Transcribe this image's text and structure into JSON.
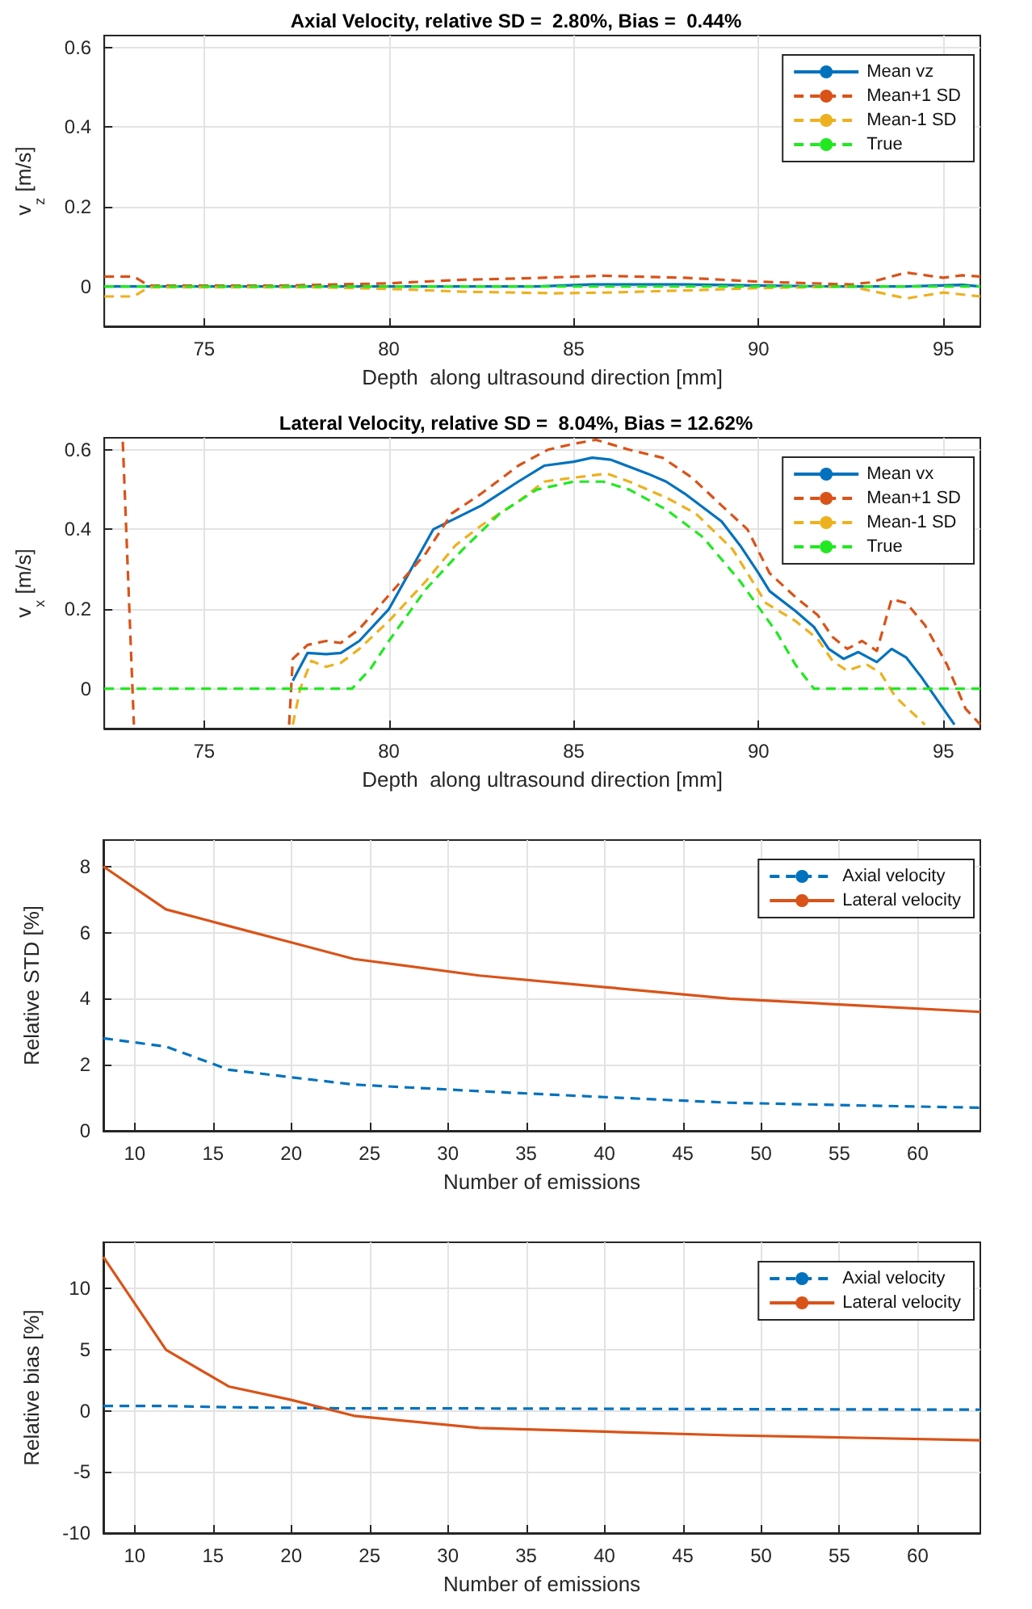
{
  "chart_data": [
    {
      "type": "line",
      "title": "Axial Velocity, relative SD =  2.80%, Bias =  0.44%",
      "xlabel": "Depth  along ultrasound direction [mm]",
      "ylabel": "v$_{z}$ [m/s]",
      "xlim": [
        72.3,
        96
      ],
      "xticks": [
        75,
        80,
        85,
        90,
        95
      ],
      "ylim": [
        -0.1,
        0.63
      ],
      "yticks": [
        0,
        0.2,
        0.4,
        0.6
      ],
      "grid": true,
      "legend": "top right",
      "series": [
        {
          "name": "Mean vz",
          "color": "#0072bd",
          "line_style": "solid",
          "x": [
            72.3,
            74,
            80,
            84,
            85.5,
            88,
            92,
            94,
            95.5,
            96
          ],
          "values": [
            0,
            0,
            0,
            0,
            0.005,
            0.005,
            0,
            0,
            0.004,
            0
          ]
        },
        {
          "name": "Mean+1 SD",
          "color": "#d95319",
          "line_style": "dashed",
          "x": [
            72.3,
            73.1,
            73.5,
            77,
            80,
            82,
            83.5,
            85.8,
            88,
            90,
            92.5,
            93,
            94,
            95,
            95.5,
            96
          ],
          "values": [
            0.025,
            0.025,
            0.002,
            0.002,
            0.008,
            0.017,
            0.02,
            0.027,
            0.022,
            0.012,
            0.005,
            0.01,
            0.035,
            0.022,
            0.028,
            0.025
          ]
        },
        {
          "name": "Mean-1 SD",
          "color": "#edb120",
          "line_style": "dashed",
          "x": [
            72.3,
            73.1,
            73.5,
            78,
            80,
            82,
            84.5,
            86,
            88,
            90,
            92.5,
            93,
            94,
            95,
            96
          ],
          "values": [
            -0.025,
            -0.025,
            -0.002,
            -0.002,
            -0.006,
            -0.013,
            -0.017,
            -0.015,
            -0.01,
            -0.004,
            0,
            -0.01,
            -0.03,
            -0.015,
            -0.025
          ]
        },
        {
          "name": "True",
          "color": "#22e822",
          "line_style": "dashed",
          "x": [
            72.3,
            96
          ],
          "values": [
            0,
            0
          ]
        }
      ]
    },
    {
      "type": "line",
      "title": "Lateral Velocity, relative SD =  8.04%, Bias = 12.62%",
      "xlabel": "Depth  along ultrasound direction [mm]",
      "ylabel": "v$_{x}$ [m/s]",
      "xlim": [
        72.3,
        96
      ],
      "xticks": [
        75,
        80,
        85,
        90,
        95
      ],
      "ylim": [
        -0.1,
        0.63
      ],
      "yticks": [
        0,
        0.2,
        0.4,
        0.6
      ],
      "grid": true,
      "legend": "top right",
      "series": [
        {
          "name": "Mean vx",
          "color": "#0072bd",
          "line_style": "solid",
          "x": [
            77.4,
            77.8,
            78.3,
            78.7,
            79.2,
            80,
            80.6,
            81.2,
            82.5,
            83.5,
            84.2,
            85,
            85.5,
            86,
            87,
            87.5,
            88,
            89,
            89.5,
            90,
            90.3,
            91,
            91.5,
            91.9,
            92.3,
            92.7,
            93.2,
            93.6,
            94,
            94.4,
            95.3
          ],
          "values": [
            0.02,
            0.09,
            0.087,
            0.09,
            0.12,
            0.2,
            0.3,
            0.4,
            0.46,
            0.52,
            0.56,
            0.57,
            0.58,
            0.575,
            0.54,
            0.52,
            0.49,
            0.42,
            0.36,
            0.29,
            0.245,
            0.195,
            0.155,
            0.1,
            0.075,
            0.092,
            0.067,
            0.1,
            0.078,
            0.03,
            -0.09
          ]
        },
        {
          "name": "Mean+1 SD",
          "color": "#d95319",
          "line_style": "dashed",
          "x": [
            72.8,
            73.1,
            null,
            77.3,
            77.4,
            77.8,
            78.3,
            78.7,
            79.2,
            80,
            81,
            81.7,
            82.5,
            83.5,
            84.3,
            85,
            85.6,
            86.5,
            87.4,
            88.2,
            89,
            89.7,
            90.3,
            91,
            91.6,
            92,
            92.4,
            92.8,
            93.2,
            93.6,
            94,
            94.5,
            95.1,
            95.6,
            96
          ],
          "values": [
            0.62,
            -0.09,
            null,
            -0.09,
            0.075,
            0.11,
            0.12,
            0.115,
            0.15,
            0.235,
            0.34,
            0.44,
            0.49,
            0.56,
            0.6,
            0.615,
            0.625,
            0.6,
            0.58,
            0.53,
            0.46,
            0.4,
            0.29,
            0.23,
            0.185,
            0.13,
            0.1,
            0.12,
            0.095,
            0.225,
            0.215,
            0.16,
            0.06,
            -0.05,
            -0.09
          ]
        },
        {
          "name": "Mean-1 SD",
          "color": "#edb120",
          "line_style": "dashed",
          "x": [
            77.4,
            77.6,
            77.9,
            78.3,
            78.7,
            79.2,
            80,
            81,
            81.8,
            82.5,
            83.5,
            84.2,
            85,
            85.9,
            86.5,
            87.5,
            88.3,
            89.3,
            90.2,
            91,
            91.6,
            92,
            92.4,
            92.9,
            93.3,
            93.7,
            94.5
          ],
          "values": [
            -0.09,
            0,
            0.07,
            0.055,
            0.065,
            0.1,
            0.17,
            0.27,
            0.36,
            0.41,
            0.47,
            0.52,
            0.53,
            0.54,
            0.52,
            0.48,
            0.44,
            0.35,
            0.215,
            0.17,
            0.125,
            0.07,
            0.045,
            0.062,
            0.04,
            -0.02,
            -0.09
          ]
        },
        {
          "name": "True",
          "color": "#22e822",
          "line_style": "dashed",
          "x": [
            72.3,
            79,
            79.5,
            80,
            81,
            82,
            83,
            84,
            85,
            85.8,
            86.5,
            87.5,
            88.5,
            89.5,
            90.5,
            91,
            91.5,
            96
          ],
          "values": [
            0,
            0,
            0.05,
            0.12,
            0.25,
            0.35,
            0.44,
            0.5,
            0.52,
            0.52,
            0.5,
            0.45,
            0.38,
            0.27,
            0.14,
            0.06,
            0,
            0
          ]
        }
      ]
    },
    {
      "type": "line",
      "xlabel": "Number of emissions",
      "ylabel": "Relative STD [%]",
      "xlim": [
        8,
        64
      ],
      "xticks": [
        10,
        15,
        20,
        25,
        30,
        35,
        40,
        45,
        50,
        55,
        60
      ],
      "ylim": [
        0,
        8.8
      ],
      "yticks": [
        0,
        2,
        4,
        6,
        8
      ],
      "grid": true,
      "legend": "top right",
      "series": [
        {
          "name": "Axial velocity",
          "color": "#0072bd",
          "line_style": "dashed",
          "x": [
            8,
            12,
            16,
            20,
            24,
            32,
            40,
            48,
            56,
            64
          ],
          "values": [
            2.8,
            2.55,
            1.85,
            1.62,
            1.4,
            1.2,
            1.02,
            0.85,
            0.77,
            0.7
          ]
        },
        {
          "name": "Lateral velocity",
          "color": "#d95319",
          "line_style": "solid",
          "x": [
            8,
            12,
            16,
            20,
            24,
            32,
            40,
            48,
            56,
            64
          ],
          "values": [
            8.0,
            6.7,
            6.2,
            5.7,
            5.2,
            4.7,
            4.35,
            4.0,
            3.8,
            3.6
          ]
        }
      ]
    },
    {
      "type": "line",
      "xlabel": "Number of emissions",
      "ylabel": "Relative bias [%]",
      "xlim": [
        8,
        64
      ],
      "xticks": [
        10,
        15,
        20,
        25,
        30,
        35,
        40,
        45,
        50,
        55,
        60
      ],
      "ylim": [
        -10,
        13.8
      ],
      "yticks": [
        -10,
        -5,
        0,
        5,
        10
      ],
      "grid": true,
      "legend": "top right",
      "series": [
        {
          "name": "Axial velocity",
          "color": "#0072bd",
          "line_style": "dashed",
          "x": [
            8,
            12,
            16,
            24,
            32,
            64
          ],
          "values": [
            0.4,
            0.4,
            0.3,
            0.2,
            0.2,
            0.1
          ]
        },
        {
          "name": "Lateral velocity",
          "color": "#d95319",
          "line_style": "solid",
          "x": [
            8,
            12,
            16,
            20,
            24,
            32,
            40,
            48,
            56,
            64
          ],
          "values": [
            12.6,
            5,
            2,
            0.9,
            -0.4,
            -1.4,
            -1.7,
            -2.0,
            -2.2,
            -2.4
          ]
        }
      ]
    }
  ]
}
